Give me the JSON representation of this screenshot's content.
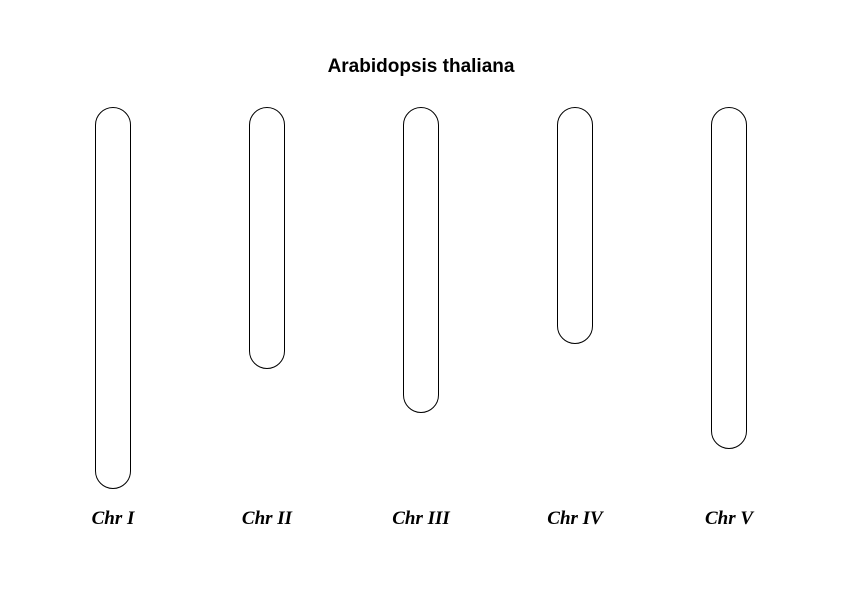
{
  "title": "Arabidopsis thaliana",
  "chromosomes": [
    {
      "label": "Chr I"
    },
    {
      "label": "Chr II"
    },
    {
      "label": "Chr III"
    },
    {
      "label": "Chr IV"
    },
    {
      "label": "Chr V"
    }
  ],
  "colors": {
    "background": "#ffffff",
    "outline": "#000000",
    "text": "#000000"
  }
}
